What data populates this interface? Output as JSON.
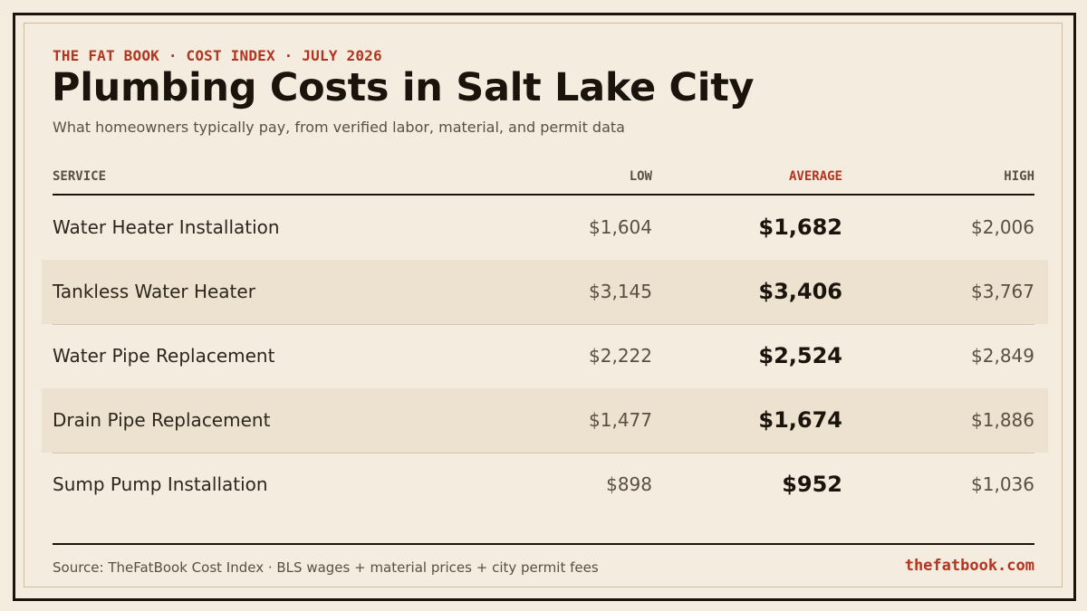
{
  "header": {
    "kicker": "THE FAT BOOK · COST INDEX · JULY 2026",
    "title": "Plumbing Costs in Salt Lake City",
    "subtitle": "What homeowners typically pay, from verified labor, material, and permit data"
  },
  "table": {
    "columns": {
      "service": "SERVICE",
      "low": "LOW",
      "average": "AVERAGE",
      "high": "HIGH"
    },
    "rows": [
      {
        "service": "Water Heater Installation",
        "low": "$1,604",
        "average": "$1,682",
        "high": "$2,006"
      },
      {
        "service": "Tankless Water Heater",
        "low": "$3,145",
        "average": "$3,406",
        "high": "$3,767"
      },
      {
        "service": "Water Pipe Replacement",
        "low": "$2,222",
        "average": "$2,524",
        "high": "$2,849"
      },
      {
        "service": "Drain Pipe Replacement",
        "low": "$1,477",
        "average": "$1,674",
        "high": "$1,886"
      },
      {
        "service": "Sump Pump Installation",
        "low": "$898",
        "average": "$952",
        "high": "$1,036"
      }
    ]
  },
  "footer": {
    "source": "Source: TheFatBook Cost Index · BLS wages + material prices + city permit fees",
    "site": "thefatbook.com"
  },
  "colors": {
    "background": "#f4ecdf",
    "accent": "#b5331f",
    "ink": "#1a140c",
    "shaded_row": "#ece2cf"
  }
}
